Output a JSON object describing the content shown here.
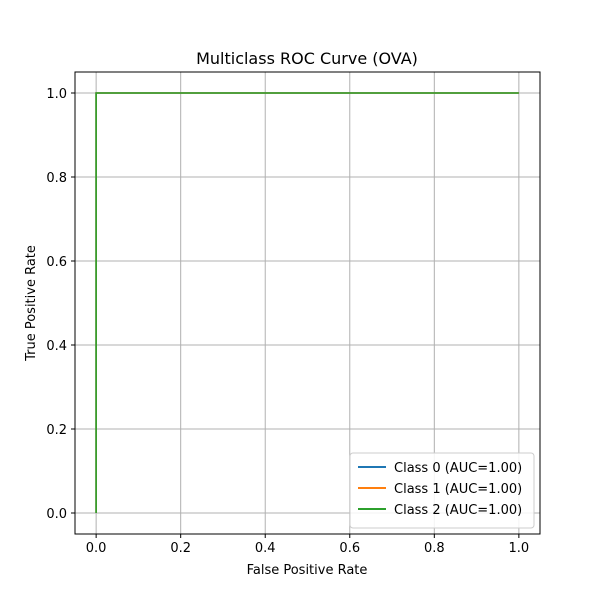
{
  "chart_data": {
    "type": "line",
    "title": "Multiclass ROC Curve (OVA)",
    "xlabel": "False Positive Rate",
    "ylabel": "True Positive Rate",
    "xlim": [
      -0.05,
      1.05
    ],
    "ylim": [
      -0.05,
      1.05
    ],
    "xticks": [
      0.0,
      0.2,
      0.4,
      0.6,
      0.8,
      1.0
    ],
    "yticks": [
      0.0,
      0.2,
      0.4,
      0.6,
      0.8,
      1.0
    ],
    "xtick_labels": [
      "0.0",
      "0.2",
      "0.4",
      "0.6",
      "0.8",
      "1.0"
    ],
    "ytick_labels": [
      "0.0",
      "0.2",
      "0.4",
      "0.6",
      "0.8",
      "1.0"
    ],
    "grid": true,
    "legend_position": "lower-right",
    "series": [
      {
        "name": "Class 0 (AUC=1.00)",
        "color": "#1f77b4",
        "x": [
          0.0,
          0.0,
          1.0
        ],
        "y": [
          0.0,
          1.0,
          1.0
        ]
      },
      {
        "name": "Class 1 (AUC=1.00)",
        "color": "#ff7f0e",
        "x": [
          0.0,
          0.0,
          1.0
        ],
        "y": [
          0.0,
          1.0,
          1.0
        ]
      },
      {
        "name": "Class 2 (AUC=1.00)",
        "color": "#2ca02c",
        "x": [
          0.0,
          0.0,
          1.0
        ],
        "y": [
          0.0,
          1.0,
          1.0
        ]
      }
    ]
  }
}
